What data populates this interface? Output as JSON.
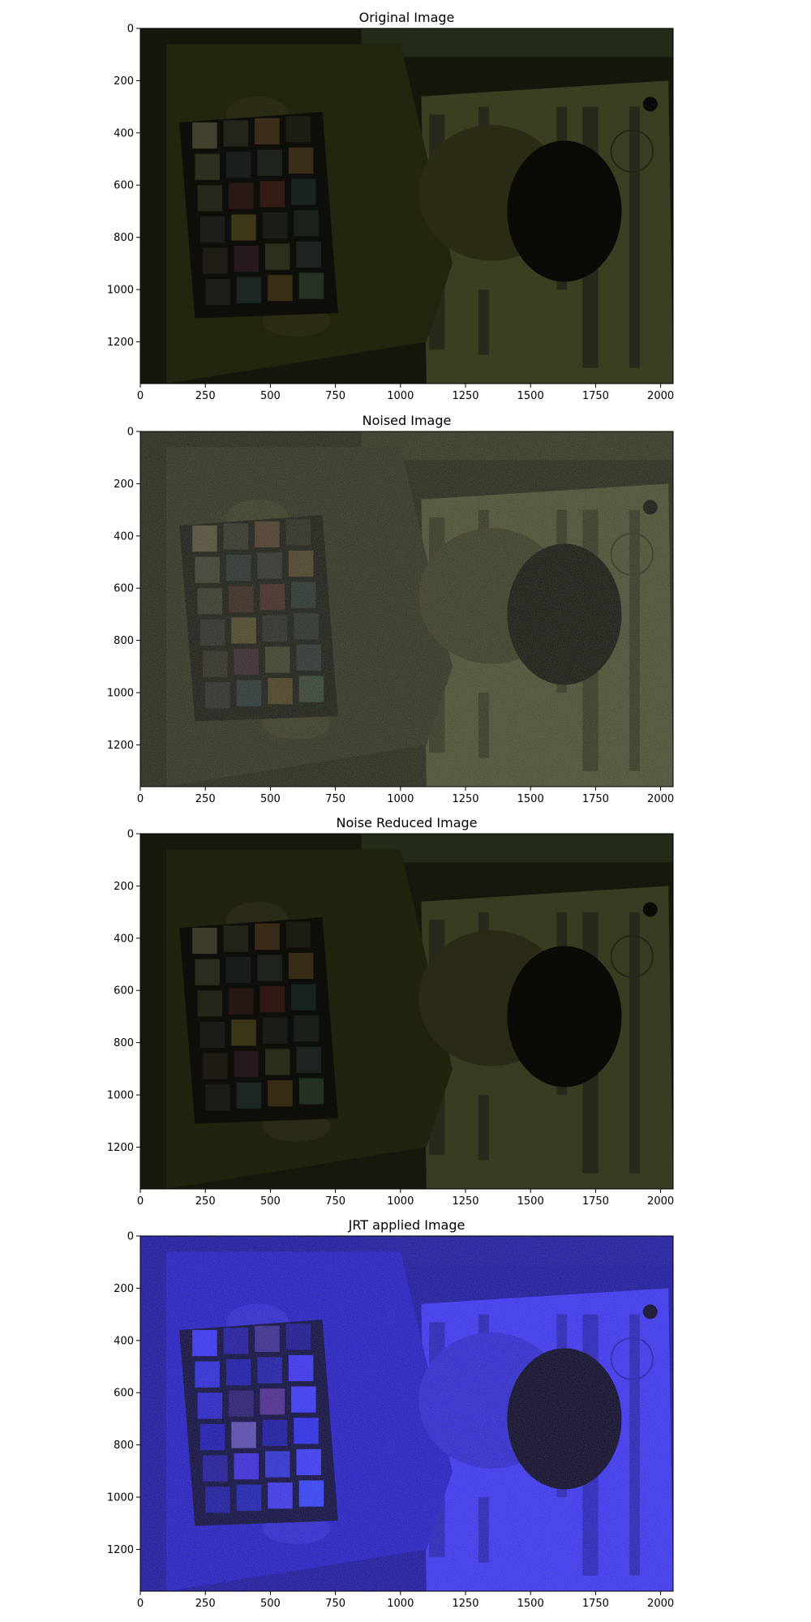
{
  "figure": {
    "panels": [
      {
        "title": "Original Image",
        "x_ticks": [
          "0",
          "250",
          "500",
          "750",
          "1000",
          "1250",
          "1500",
          "1750",
          "2000"
        ],
        "y_ticks": [
          "0",
          "200",
          "400",
          "600",
          "800",
          "1000",
          "1200"
        ],
        "scene": {
          "background": "#14170c",
          "poster": "#3a3f22",
          "poster_text": "#23271a",
          "shirt": "#22260f",
          "skin": "#2c2c16",
          "hair": "#0a0a07",
          "top_bar": "#222a18",
          "chart_frame": "#0e0e0b",
          "patches": [
            "#433f2e",
            "#22251c",
            "#3d2e1a",
            "#1c1d15",
            "#2d2f1f",
            "#1b1f1c",
            "#20241e",
            "#3a2e1a",
            "#27281b",
            "#2a1915",
            "#331b16",
            "#1a241f",
            "#1c1f17",
            "#3e3819",
            "#1b1e18",
            "#1b211b",
            "#201d16",
            "#281a1c",
            "#2c301a",
            "#1d2422",
            "#1c1f19",
            "#1c2726",
            "#3a2e14",
            "#263225"
          ],
          "noise": false
        }
      },
      {
        "title": "Noised Image",
        "x_ticks": [
          "0",
          "250",
          "500",
          "750",
          "1000",
          "1250",
          "1500",
          "1750",
          "2000"
        ],
        "y_ticks": [
          "0",
          "200",
          "400",
          "600",
          "800",
          "1000",
          "1200"
        ],
        "scene": {
          "background": "#26281a",
          "poster": "#484e30",
          "poster_text": "#30341f",
          "shirt": "#2e3320",
          "skin": "#3a3a24",
          "hair": "#17160f",
          "top_bar": "#30371f",
          "chart_frame": "#1b1c14",
          "patches": [
            "#524d38",
            "#30332a",
            "#4b3b28",
            "#2a2b22",
            "#3b3d2d",
            "#29302a",
            "#2e322c",
            "#484028",
            "#363729",
            "#382820",
            "#412a24",
            "#28322d",
            "#2a2d25",
            "#4c4627",
            "#292c26",
            "#292f29",
            "#2e2b24",
            "#36282a",
            "#3a3e28",
            "#2b3230",
            "#2a2d27",
            "#2a3534",
            "#484022",
            "#344033"
          ],
          "noise": true
        }
      },
      {
        "title": "Noise Reduced Image",
        "x_ticks": [
          "0",
          "250",
          "500",
          "750",
          "1000",
          "1250",
          "1500",
          "1750",
          "2000"
        ],
        "y_ticks": [
          "0",
          "200",
          "400",
          "600",
          "800",
          "1000",
          "1200"
        ],
        "scene": {
          "background": "#15180d",
          "poster": "#383d22",
          "poster_text": "#23271a",
          "shirt": "#20240f",
          "skin": "#2a2a16",
          "hair": "#0a0a07",
          "top_bar": "#222a18",
          "chart_frame": "#0e0e0b",
          "patches": [
            "#3f3b2b",
            "#212419",
            "#3a2c19",
            "#1b1c14",
            "#2a2c1d",
            "#1a1e1b",
            "#1f231d",
            "#372c18",
            "#25261a",
            "#281814",
            "#311a15",
            "#19231e",
            "#1b1e16",
            "#3b3518",
            "#1a1d17",
            "#1a201a",
            "#1f1c15",
            "#27191b",
            "#2a2e19",
            "#1c2321",
            "#1b1e18",
            "#1b2625",
            "#372c13",
            "#243023"
          ],
          "noise": false
        }
      },
      {
        "title": "JRT applied Image",
        "x_ticks": [
          "0",
          "250",
          "500",
          "750",
          "1000",
          "1250",
          "1500",
          "1750",
          "2000"
        ],
        "y_ticks": [
          "0",
          "200",
          "400",
          "600",
          "800",
          "1000",
          "1200"
        ],
        "scene": {
          "background": "#1b16a0",
          "poster": "#3a34f2",
          "poster_text": "#2420b0",
          "shirt": "#231cc4",
          "skin": "#2e28d0",
          "hair": "#0b0828",
          "top_bar": "#1d18a0",
          "chart_frame": "#0e0b40",
          "patches": [
            "#3832f4",
            "#2018a0",
            "#3a2a90",
            "#1a1590",
            "#2c2ad8",
            "#1a18a8",
            "#1f1ca8",
            "#3a30f0",
            "#2622c8",
            "#2a1a70",
            "#4a2a90",
            "#3a36f8",
            "#1b18b0",
            "#5a4ab0",
            "#1a17a0",
            "#2a2ae8",
            "#20189a",
            "#3a2ad8",
            "#2c30d0",
            "#3a38f6",
            "#1b18a0",
            "#1c20b0",
            "#3a34e8",
            "#3440f8"
          ],
          "noise": true
        }
      }
    ]
  }
}
